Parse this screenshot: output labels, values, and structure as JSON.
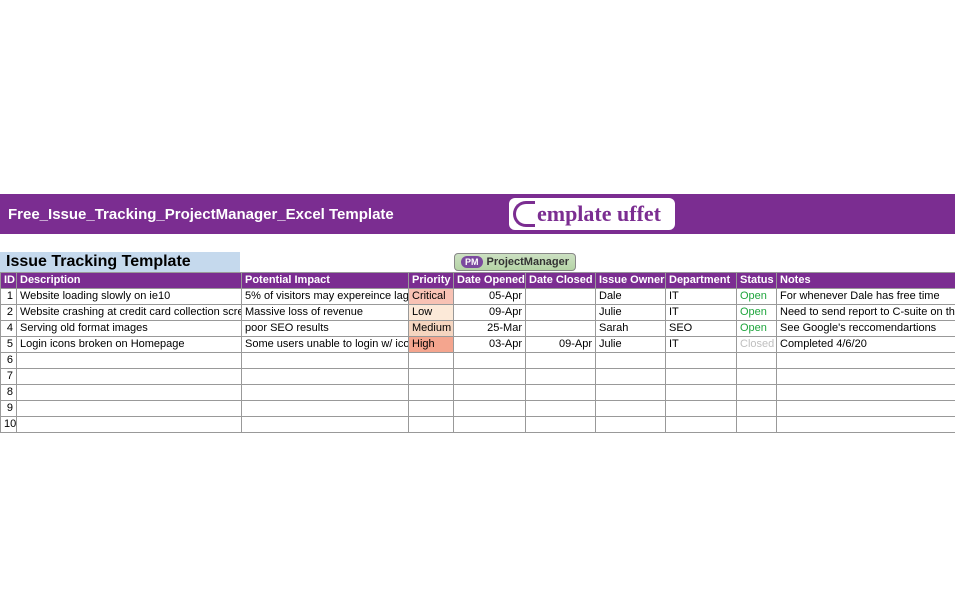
{
  "titleBar": {
    "text": "Free_Issue_Tracking_ProjectManager_Excel Template",
    "logoText": "emplate uffet"
  },
  "subtitle": "Issue Tracking Template",
  "pmLogo": {
    "badge": "PM",
    "text": "ProjectManager"
  },
  "colors": {
    "header_bg": "#7b2d91",
    "subtitle_bg": "#c5d9ed",
    "prio_critical": "#f8c2b4",
    "prio_low": "#fce9d8",
    "prio_medium": "#f5d5c0",
    "prio_high": "#f4a58e",
    "status_open": "#1fa53d",
    "status_closed": "#bfbfbf"
  },
  "columns": [
    "ID",
    "Description",
    "Potential Impact",
    "Priority",
    "Date Opened",
    "Date Closed",
    "Issue Owner",
    "Department",
    "Status",
    "Notes"
  ],
  "rows": [
    {
      "id": "1",
      "desc": "Website loading slowly on ie10",
      "impact": "5% of visitors may expereince lag",
      "priority": "Critical",
      "prio_class": "prio-critical",
      "dopen": "05-Apr",
      "dclose": "",
      "owner": "Dale",
      "dept": "IT",
      "status": "Open",
      "status_class": "status-open",
      "notes": "For whenever Dale has free time"
    },
    {
      "id": "2",
      "desc": "Website crashing at credit card collection screen",
      "impact": "Massive loss of revenue",
      "priority": "Low",
      "prio_class": "prio-low",
      "dopen": "09-Apr",
      "dclose": "",
      "owner": "Julie",
      "dept": "IT",
      "status": "Open",
      "status_class": "status-open",
      "notes": "Need to send report to C-suite on this"
    },
    {
      "id": "4",
      "desc": "Serving old format images",
      "impact": "poor SEO results",
      "priority": "Medium",
      "prio_class": "prio-medium",
      "dopen": "25-Mar",
      "dclose": "",
      "owner": "Sarah",
      "dept": "SEO",
      "status": "Open",
      "status_class": "status-open",
      "notes": "See Google's reccomendartions"
    },
    {
      "id": "5",
      "desc": "Login icons broken on Homepage",
      "impact": "Some users unable to login w/ icons",
      "priority": "High",
      "prio_class": "prio-high",
      "dopen": "03-Apr",
      "dclose": "09-Apr",
      "owner": "Julie",
      "dept": "IT",
      "status": "Closed",
      "status_class": "status-closed",
      "notes": "Completed 4/6/20"
    },
    {
      "id": "6",
      "desc": "",
      "impact": "",
      "priority": "",
      "prio_class": "",
      "dopen": "",
      "dclose": "",
      "owner": "",
      "dept": "",
      "status": "",
      "status_class": "",
      "notes": ""
    },
    {
      "id": "7",
      "desc": "",
      "impact": "",
      "priority": "",
      "prio_class": "",
      "dopen": "",
      "dclose": "",
      "owner": "",
      "dept": "",
      "status": "",
      "status_class": "",
      "notes": ""
    },
    {
      "id": "8",
      "desc": "",
      "impact": "",
      "priority": "",
      "prio_class": "",
      "dopen": "",
      "dclose": "",
      "owner": "",
      "dept": "",
      "status": "",
      "status_class": "",
      "notes": ""
    },
    {
      "id": "9",
      "desc": "",
      "impact": "",
      "priority": "",
      "prio_class": "",
      "dopen": "",
      "dclose": "",
      "owner": "",
      "dept": "",
      "status": "",
      "status_class": "",
      "notes": ""
    },
    {
      "id": "10",
      "desc": "",
      "impact": "",
      "priority": "",
      "prio_class": "",
      "dopen": "",
      "dclose": "",
      "owner": "",
      "dept": "",
      "status": "",
      "status_class": "",
      "notes": ""
    }
  ]
}
